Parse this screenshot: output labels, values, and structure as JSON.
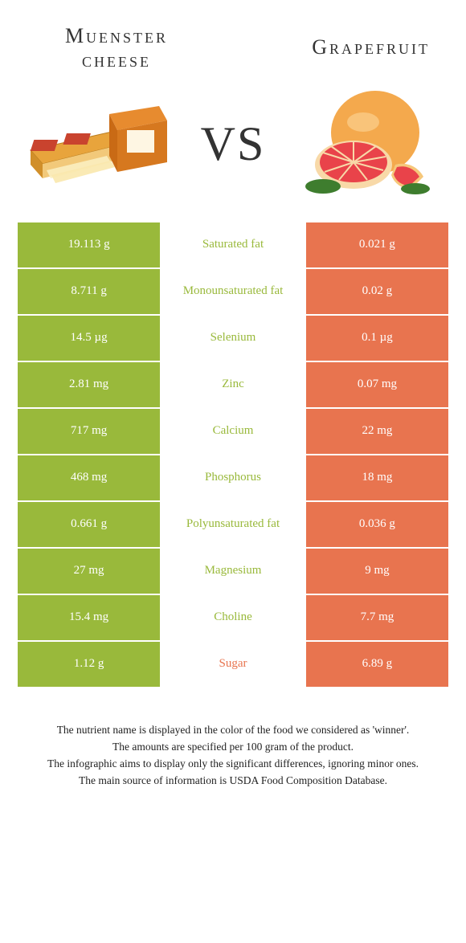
{
  "colors": {
    "left_food": "#99b93b",
    "right_food": "#e8744f",
    "background": "#ffffff",
    "text_dark": "#333333"
  },
  "left_food": {
    "title_line1": "Muenster",
    "title_line2": "cheese"
  },
  "right_food": {
    "title": "Grapefruit"
  },
  "vs": "VS",
  "rows": [
    {
      "left": "19.113 g",
      "label": "Saturated fat",
      "right": "0.021 g",
      "winner": "left"
    },
    {
      "left": "8.711 g",
      "label": "Monounsaturated fat",
      "right": "0.02 g",
      "winner": "left"
    },
    {
      "left": "14.5 µg",
      "label": "Selenium",
      "right": "0.1 µg",
      "winner": "left"
    },
    {
      "left": "2.81 mg",
      "label": "Zinc",
      "right": "0.07 mg",
      "winner": "left"
    },
    {
      "left": "717 mg",
      "label": "Calcium",
      "right": "22 mg",
      "winner": "left"
    },
    {
      "left": "468 mg",
      "label": "Phosphorus",
      "right": "18 mg",
      "winner": "left"
    },
    {
      "left": "0.661 g",
      "label": "Polyunsaturated fat",
      "right": "0.036 g",
      "winner": "left"
    },
    {
      "left": "27 mg",
      "label": "Magnesium",
      "right": "9 mg",
      "winner": "left"
    },
    {
      "left": "15.4 mg",
      "label": "Choline",
      "right": "7.7 mg",
      "winner": "left"
    },
    {
      "left": "1.12 g",
      "label": "Sugar",
      "right": "6.89 g",
      "winner": "right"
    }
  ],
  "footer": {
    "line1": "The nutrient name is displayed in the color of the food we considered as 'winner'.",
    "line2": "The amounts are specified per 100 gram of the product.",
    "line3": "The infographic aims to display only the significant differences, ignoring minor ones.",
    "line4": "The main source of information is USDA Food Composition Database."
  }
}
